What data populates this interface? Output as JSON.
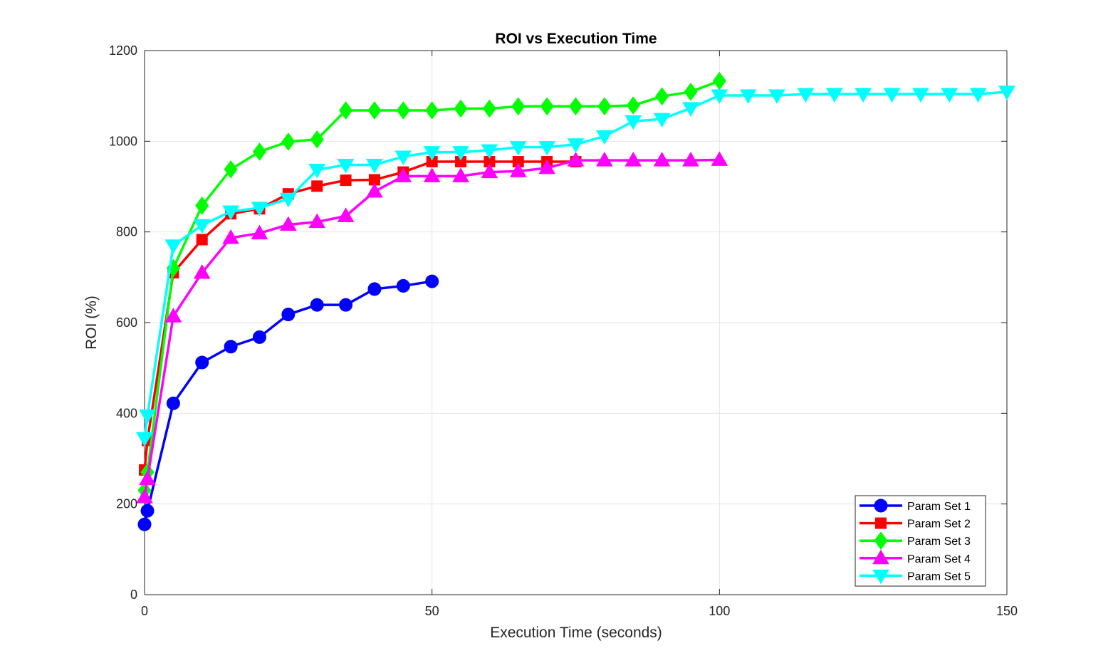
{
  "chart_data": {
    "type": "line",
    "title": "ROI vs Execution Time",
    "xlabel": "Execution Time (seconds)",
    "ylabel": "ROI (%)",
    "xlim": [
      0,
      150
    ],
    "ylim": [
      0,
      1200
    ],
    "xticks": [
      "0",
      "50",
      "100",
      "150"
    ],
    "yticks": [
      "0",
      "200",
      "400",
      "600",
      "800",
      "1000",
      "1200"
    ],
    "grid": true,
    "legend_position": "bottom-right",
    "series": [
      {
        "name": "Param Set 1",
        "color": "#0000ff",
        "marker": "circle",
        "x": [
          0,
          0.5,
          5,
          10,
          15,
          20,
          25,
          30,
          35,
          40,
          45,
          50
        ],
        "y": [
          155,
          185,
          422,
          512,
          547,
          568,
          618,
          639,
          639,
          674,
          681,
          691
        ]
      },
      {
        "name": "Param Set 2",
        "color": "#ff0000",
        "marker": "square",
        "x": [
          0,
          0.5,
          5,
          10,
          15,
          20,
          25,
          30,
          35,
          40,
          45,
          50,
          55,
          60,
          65,
          70,
          75
        ],
        "y": [
          275,
          340,
          710,
          783,
          840,
          851,
          884,
          901,
          914,
          915,
          932,
          955,
          955,
          955,
          955,
          955,
          955
        ]
      },
      {
        "name": "Param Set 3",
        "color": "#00ff00",
        "marker": "diamond",
        "x": [
          0,
          0.5,
          5,
          10,
          15,
          20,
          25,
          30,
          35,
          40,
          45,
          50,
          55,
          60,
          65,
          70,
          75,
          80,
          85,
          90,
          95,
          100
        ],
        "y": [
          230,
          270,
          720,
          858,
          938,
          977,
          999,
          1004,
          1068,
          1068,
          1068,
          1068,
          1072,
          1072,
          1077,
          1077,
          1077,
          1077,
          1079,
          1099,
          1109,
          1133
        ]
      },
      {
        "name": "Param Set 4",
        "color": "#ff00ff",
        "marker": "triangle-up",
        "x": [
          0,
          0.5,
          5,
          10,
          15,
          20,
          25,
          30,
          35,
          40,
          45,
          50,
          55,
          60,
          65,
          70,
          75,
          80,
          85,
          90,
          95,
          100
        ],
        "y": [
          215,
          255,
          614,
          710,
          787,
          797,
          816,
          822,
          835,
          889,
          923,
          923,
          923,
          932,
          934,
          941,
          958,
          958,
          958,
          958,
          958,
          959
        ]
      },
      {
        "name": "Param Set 5",
        "color": "#00ffff",
        "marker": "triangle-down",
        "x": [
          0,
          0.5,
          5,
          10,
          15,
          20,
          25,
          30,
          35,
          40,
          45,
          50,
          55,
          60,
          65,
          70,
          75,
          80,
          85,
          90,
          95,
          100,
          105,
          110,
          115,
          120,
          125,
          130,
          135,
          140,
          145,
          150
        ],
        "y": [
          345,
          395,
          770,
          815,
          845,
          853,
          873,
          937,
          948,
          948,
          966,
          976,
          976,
          980,
          987,
          987,
          993,
          1011,
          1044,
          1049,
          1073,
          1101,
          1101,
          1101,
          1104,
          1104,
          1104,
          1104,
          1104,
          1104,
          1104,
          1109
        ]
      }
    ]
  }
}
